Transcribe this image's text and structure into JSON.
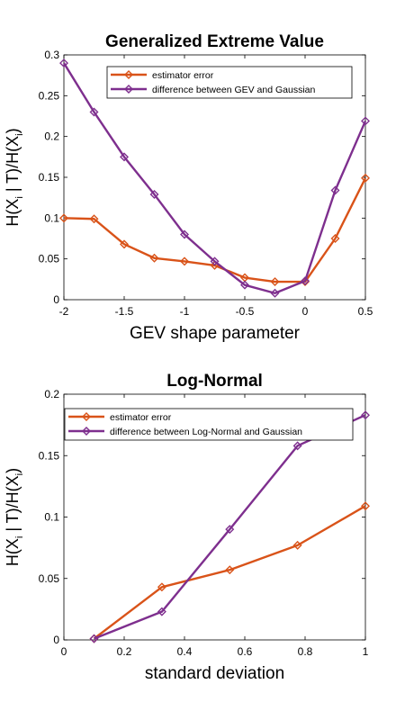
{
  "colors": {
    "series1": "#D95319",
    "series2": "#7E2F8E",
    "axis": "#000000",
    "background": "#ffffff"
  },
  "chart_data": [
    {
      "type": "line",
      "title": "Generalized Extreme Value",
      "xlabel": "GEV shape parameter",
      "ylabel": {
        "main_1": "H(X",
        "sub_1": "i",
        "main_2": " | T)/H(X",
        "sub_2": "i",
        "main_3": ")"
      },
      "xlim": [
        -2,
        0.5
      ],
      "ylim": [
        0,
        0.3
      ],
      "xticks": [
        -2,
        -1.5,
        -1,
        -0.5,
        0,
        0.5
      ],
      "xtick_labels": [
        "-2",
        "-1.5",
        "-1",
        "-0.5",
        "0",
        "0.5"
      ],
      "yticks": [
        0,
        0.05,
        0.1,
        0.15,
        0.2,
        0.25,
        0.3
      ],
      "ytick_labels": [
        "0",
        "0.05",
        "0.1",
        "0.15",
        "0.2",
        "0.25",
        "0.3"
      ],
      "legend_position": "top-right",
      "marker": "diamond",
      "series": [
        {
          "name": "estimator error",
          "x": [
            -2,
            -1.75,
            -1.5,
            -1.25,
            -1,
            -0.75,
            -0.5,
            -0.25,
            0,
            0.25,
            0.5
          ],
          "values": [
            0.1,
            0.099,
            0.068,
            0.051,
            0.047,
            0.042,
            0.027,
            0.022,
            0.022,
            0.075,
            0.149
          ]
        },
        {
          "name": "difference between GEV and Gaussian",
          "x": [
            -2,
            -1.75,
            -1.5,
            -1.25,
            -1,
            -0.75,
            -0.5,
            -0.25,
            0,
            0.25,
            0.5
          ],
          "values": [
            0.29,
            0.23,
            0.175,
            0.129,
            0.08,
            0.047,
            0.018,
            0.008,
            0.023,
            0.134,
            0.219
          ]
        }
      ]
    },
    {
      "type": "line",
      "title": "Log-Normal",
      "xlabel": "standard deviation",
      "ylabel": {
        "main_1": "H(X",
        "sub_1": "i",
        "main_2": " | T)/H(X",
        "sub_2": "i",
        "main_3": ")"
      },
      "xlim": [
        0,
        1
      ],
      "ylim": [
        0,
        0.2
      ],
      "xticks": [
        0,
        0.2,
        0.4,
        0.6,
        0.8,
        1
      ],
      "xtick_labels": [
        "0",
        "0.2",
        "0.4",
        "0.6",
        "0.8",
        "1"
      ],
      "yticks": [
        0,
        0.05,
        0.1,
        0.15,
        0.2
      ],
      "ytick_labels": [
        "0",
        "0.05",
        "0.1",
        "0.15",
        "0.2"
      ],
      "legend_position": "top",
      "marker": "diamond",
      "series": [
        {
          "name": "estimator error",
          "x": [
            0.1,
            0.325,
            0.55,
            0.775,
            1
          ],
          "values": [
            0.001,
            0.043,
            0.057,
            0.077,
            0.109
          ]
        },
        {
          "name": "difference between Log-Normal and Gaussian",
          "x": [
            0.1,
            0.325,
            0.55,
            0.775,
            1
          ],
          "values": [
            0.001,
            0.023,
            0.09,
            0.158,
            0.183
          ]
        }
      ]
    }
  ]
}
